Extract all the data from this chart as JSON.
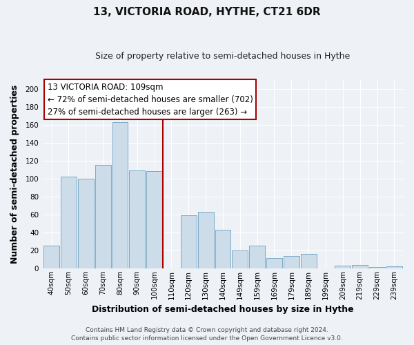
{
  "title": "13, VICTORIA ROAD, HYTHE, CT21 6DR",
  "subtitle": "Size of property relative to semi-detached houses in Hythe",
  "xlabel": "Distribution of semi-detached houses by size in Hythe",
  "ylabel": "Number of semi-detached properties",
  "bar_labels": [
    "40sqm",
    "50sqm",
    "60sqm",
    "70sqm",
    "80sqm",
    "90sqm",
    "100sqm",
    "110sqm",
    "120sqm",
    "130sqm",
    "140sqm",
    "149sqm",
    "159sqm",
    "169sqm",
    "179sqm",
    "189sqm",
    "199sqm",
    "209sqm",
    "219sqm",
    "229sqm",
    "239sqm"
  ],
  "bar_values": [
    25,
    102,
    100,
    115,
    163,
    109,
    108,
    0,
    59,
    63,
    43,
    20,
    25,
    11,
    14,
    16,
    0,
    3,
    4,
    1,
    2
  ],
  "bar_color": "#ccdce8",
  "bar_edge_color": "#7aaac8",
  "highlight_index": 7,
  "highlight_line_color": "#aa0000",
  "annotation_text_line1": "13 VICTORIA ROAD: 109sqm",
  "annotation_text_line2": "← 72% of semi-detached houses are smaller (702)",
  "annotation_text_line3": "27% of semi-detached houses are larger (263) →",
  "annotation_box_facecolor": "#ffffff",
  "annotation_box_edgecolor": "#aa0000",
  "ylim": [
    0,
    210
  ],
  "yticks": [
    0,
    20,
    40,
    60,
    80,
    100,
    120,
    140,
    160,
    180,
    200
  ],
  "footer1": "Contains HM Land Registry data © Crown copyright and database right 2024.",
  "footer2": "Contains public sector information licensed under the Open Government Licence v3.0.",
  "background_color": "#eef2f7",
  "grid_color": "#ffffff",
  "title_fontsize": 11,
  "subtitle_fontsize": 9,
  "annotation_fontsize": 8.5,
  "axis_label_fontsize": 9,
  "tick_fontsize": 7.5,
  "footer_fontsize": 6.5
}
